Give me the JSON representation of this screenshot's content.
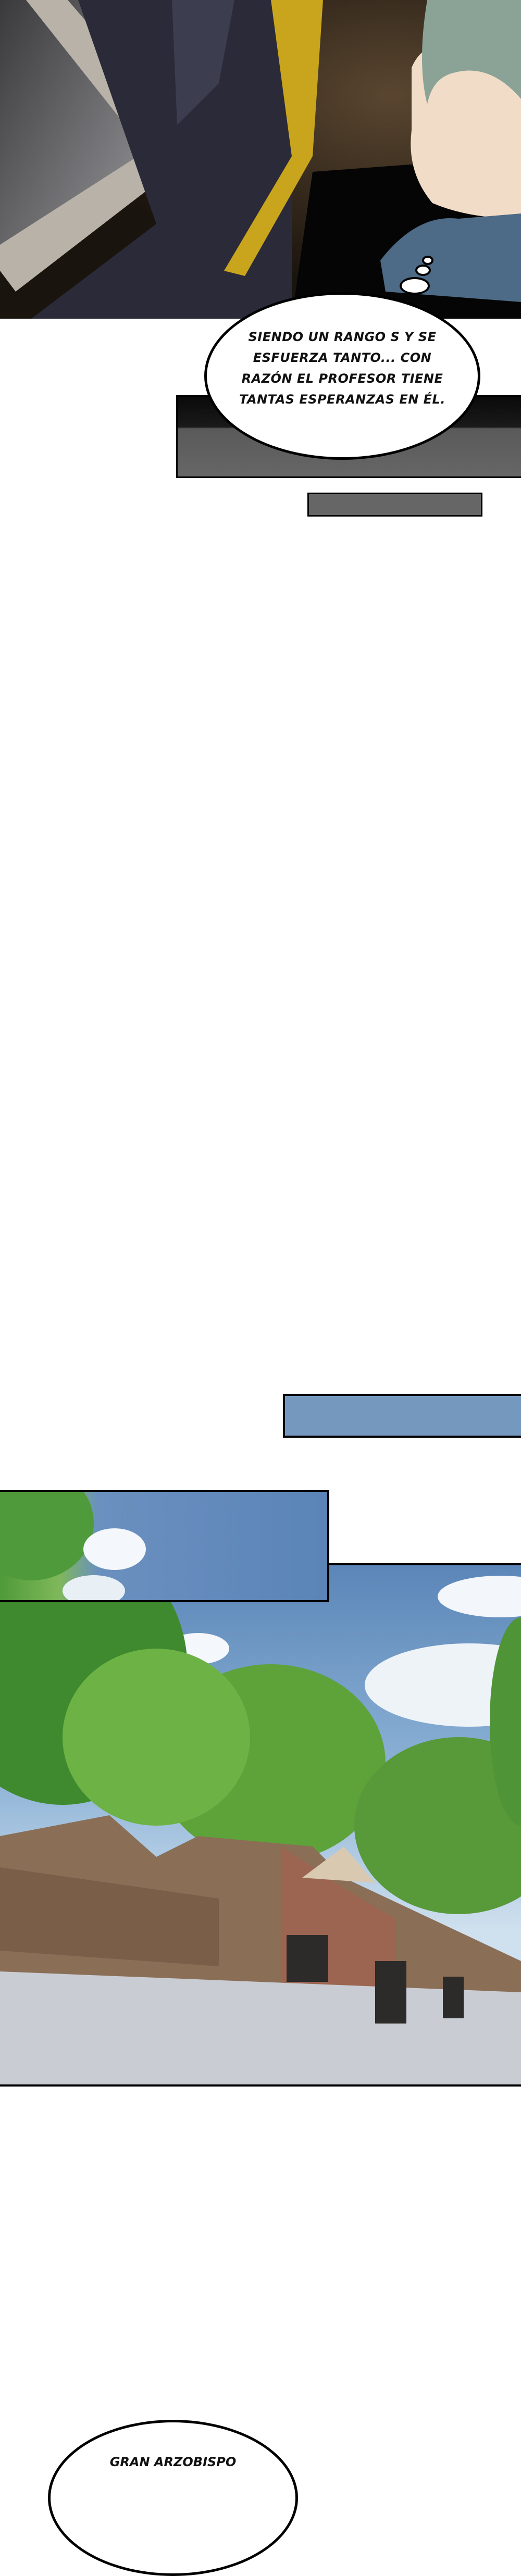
{
  "panels": [
    {
      "scene": "two characters in dark uniforms, one with grey-green hair looking sideways"
    },
    {
      "scene": "mansion among green trees under blue sky"
    }
  ],
  "bubbles": [
    {
      "kind": "thought",
      "text": "SIENDO UN RANGO S Y SE ESFUERZA TANTO... CON RAZÓN EL PROFESOR TIENE TANTAS ESPERANZAS EN ÉL."
    },
    {
      "kind": "speech",
      "text": "GRAN ARZOBISPO"
    }
  ],
  "colors": {
    "blue_bar": "#7598be",
    "grey_bar": "#666666",
    "border": "#000000"
  }
}
